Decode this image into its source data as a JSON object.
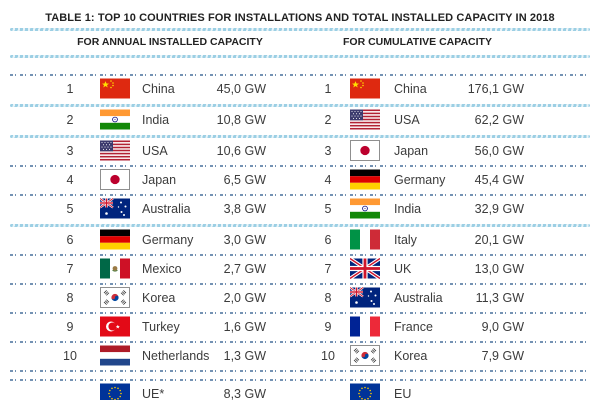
{
  "title": "TABLE 1: TOP 10 COUNTRIES FOR INSTALLATIONS AND TOTAL INSTALLED CAPACITY IN 2018",
  "annual": {
    "header": "FOR ANNUAL INSTALLED CAPACITY",
    "entries": [
      {
        "rank": "1",
        "flag": "china",
        "country": "China",
        "value": "45,0 GW"
      },
      {
        "rank": "2",
        "flag": "india",
        "country": "India",
        "value": "10,8 GW"
      },
      {
        "rank": "3",
        "flag": "usa",
        "country": "USA",
        "value": "10,6 GW"
      },
      {
        "rank": "4",
        "flag": "japan",
        "country": "Japan",
        "value": "6,5 GW"
      },
      {
        "rank": "5",
        "flag": "australia",
        "country": "Australia",
        "value": "3,8 GW"
      },
      {
        "rank": "6",
        "flag": "germany",
        "country": "Germany",
        "value": "3,0 GW"
      },
      {
        "rank": "7",
        "flag": "mexico",
        "country": "Mexico",
        "value": "2,7 GW"
      },
      {
        "rank": "8",
        "flag": "korea",
        "country": "Korea",
        "value": "2,0 GW"
      },
      {
        "rank": "9",
        "flag": "turkey",
        "country": "Turkey",
        "value": "1,6 GW"
      },
      {
        "rank": "10",
        "flag": "netherlands",
        "country": "Netherlands",
        "value": "1,3 GW"
      }
    ],
    "footer": {
      "flag": "eu",
      "label": "UE*",
      "value": "8,3 GW"
    }
  },
  "cumulative": {
    "header": "FOR CUMULATIVE CAPACITY",
    "entries": [
      {
        "rank": "1",
        "flag": "china",
        "country": "China",
        "value": "176,1 GW"
      },
      {
        "rank": "2",
        "flag": "usa",
        "country": "USA",
        "value": "62,2 GW"
      },
      {
        "rank": "3",
        "flag": "japan",
        "country": "Japan",
        "value": "56,0 GW"
      },
      {
        "rank": "4",
        "flag": "germany",
        "country": "Germany",
        "value": "45,4 GW"
      },
      {
        "rank": "5",
        "flag": "india",
        "country": "India",
        "value": "32,9 GW"
      },
      {
        "rank": "6",
        "flag": "italy",
        "country": "Italy",
        "value": "20,1 GW"
      },
      {
        "rank": "7",
        "flag": "uk",
        "country": "UK",
        "value": "13,0 GW"
      },
      {
        "rank": "8",
        "flag": "australia",
        "country": "Australia",
        "value": "11,3 GW"
      },
      {
        "rank": "9",
        "flag": "france",
        "country": "France",
        "value": "9,0 GW"
      },
      {
        "rank": "10",
        "flag": "korea",
        "country": "Korea",
        "value": "7,9 GW"
      }
    ],
    "footer": {
      "flag": "eu",
      "label": "EU",
      "value": ""
    }
  },
  "colors": {
    "separator_light": "#9ccfe4",
    "separator_dark": "#5b7fa6",
    "text": "#3c3c3c"
  }
}
